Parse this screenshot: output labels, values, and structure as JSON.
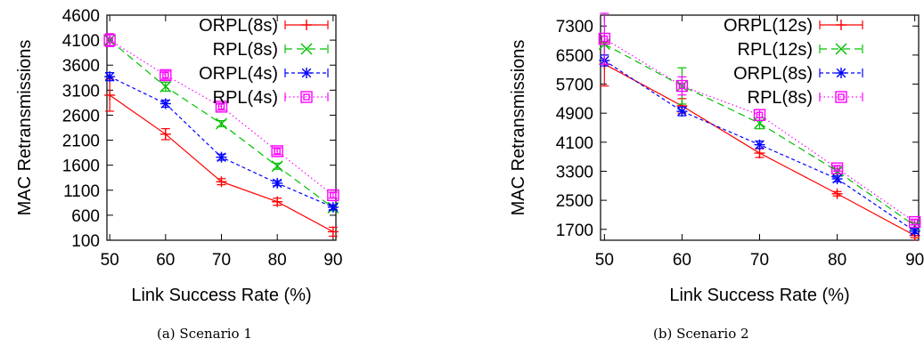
{
  "chart_data": [
    {
      "type": "line",
      "caption": "(a) Scenario 1",
      "xlabel": "Link Success Rate (%)",
      "ylabel": "MAC Retransmissions",
      "x": [
        50,
        60,
        70,
        80,
        90
      ],
      "xticks": [
        "50",
        "60",
        "70",
        "80",
        "90"
      ],
      "xlim": [
        49.5,
        90.5
      ],
      "ylim": [
        100,
        4600
      ],
      "yticks": [
        "100",
        "600",
        "1100",
        "1600",
        "2100",
        "2600",
        "3100",
        "3600",
        "4100",
        "4600"
      ],
      "grid": false,
      "legend_position": "top-right",
      "series": [
        {
          "name": "ORPL(8s)",
          "values": [
            3000,
            2220,
            1270,
            870,
            270
          ],
          "err": [
            320,
            110,
            60,
            70,
            90
          ],
          "color": "#ff0000",
          "marker": "plus",
          "dash": "solid"
        },
        {
          "name": "RPL(8s)",
          "values": [
            4100,
            3170,
            2430,
            1580,
            750
          ],
          "err": [
            120,
            90,
            60,
            60,
            60
          ],
          "color": "#00c000",
          "marker": "x",
          "dash": "dashed"
        },
        {
          "name": "ORPL(4s)",
          "values": [
            3370,
            2830,
            1760,
            1240,
            760
          ],
          "err": [
            80,
            70,
            60,
            50,
            50
          ],
          "color": "#0000ff",
          "marker": "star",
          "dash": "short-dashed"
        },
        {
          "name": "RPL(4s)",
          "values": [
            4100,
            3400,
            2770,
            1880,
            1000
          ],
          "err": [
            130,
            80,
            70,
            70,
            60
          ],
          "color": "#ff00ff",
          "marker": "square",
          "dash": "dotted"
        }
      ]
    },
    {
      "type": "line",
      "caption": "(b) Scenario 2",
      "xlabel": "Link Success Rate (%)",
      "ylabel": "MAC Retransmissions",
      "x": [
        50,
        60,
        70,
        80,
        90
      ],
      "xticks": [
        "50",
        "60",
        "70",
        "80",
        "90"
      ],
      "xlim": [
        49.5,
        90.5
      ],
      "ylim": [
        1400,
        7600
      ],
      "yticks": [
        "1700",
        "2500",
        "3300",
        "4100",
        "4900",
        "5700",
        "6500",
        "7300"
      ],
      "grid": false,
      "legend_position": "top-right",
      "series": [
        {
          "name": "ORPL(12s)",
          "values": [
            6250,
            5100,
            3800,
            2680,
            1530
          ],
          "err": [
            600,
            200,
            120,
            60,
            60
          ],
          "color": "#ff0000",
          "marker": "plus",
          "dash": "solid"
        },
        {
          "name": "RPL(12s)",
          "values": [
            6800,
            5650,
            4620,
            3300,
            1800
          ],
          "err": [
            300,
            500,
            150,
            80,
            80
          ],
          "color": "#00c000",
          "marker": "x",
          "dash": "dashed"
        },
        {
          "name": "ORPL(8s)",
          "values": [
            6350,
            4950,
            4030,
            3090,
            1650
          ],
          "err": [
            150,
            120,
            100,
            80,
            60
          ],
          "color": "#0000ff",
          "marker": "star",
          "dash": "short-dashed"
        },
        {
          "name": "RPL(8s)",
          "values": [
            6950,
            5650,
            4850,
            3380,
            1900
          ],
          "err": [
            700,
            250,
            150,
            80,
            80
          ],
          "color": "#ff00ff",
          "marker": "square",
          "dash": "dotted"
        }
      ]
    }
  ]
}
